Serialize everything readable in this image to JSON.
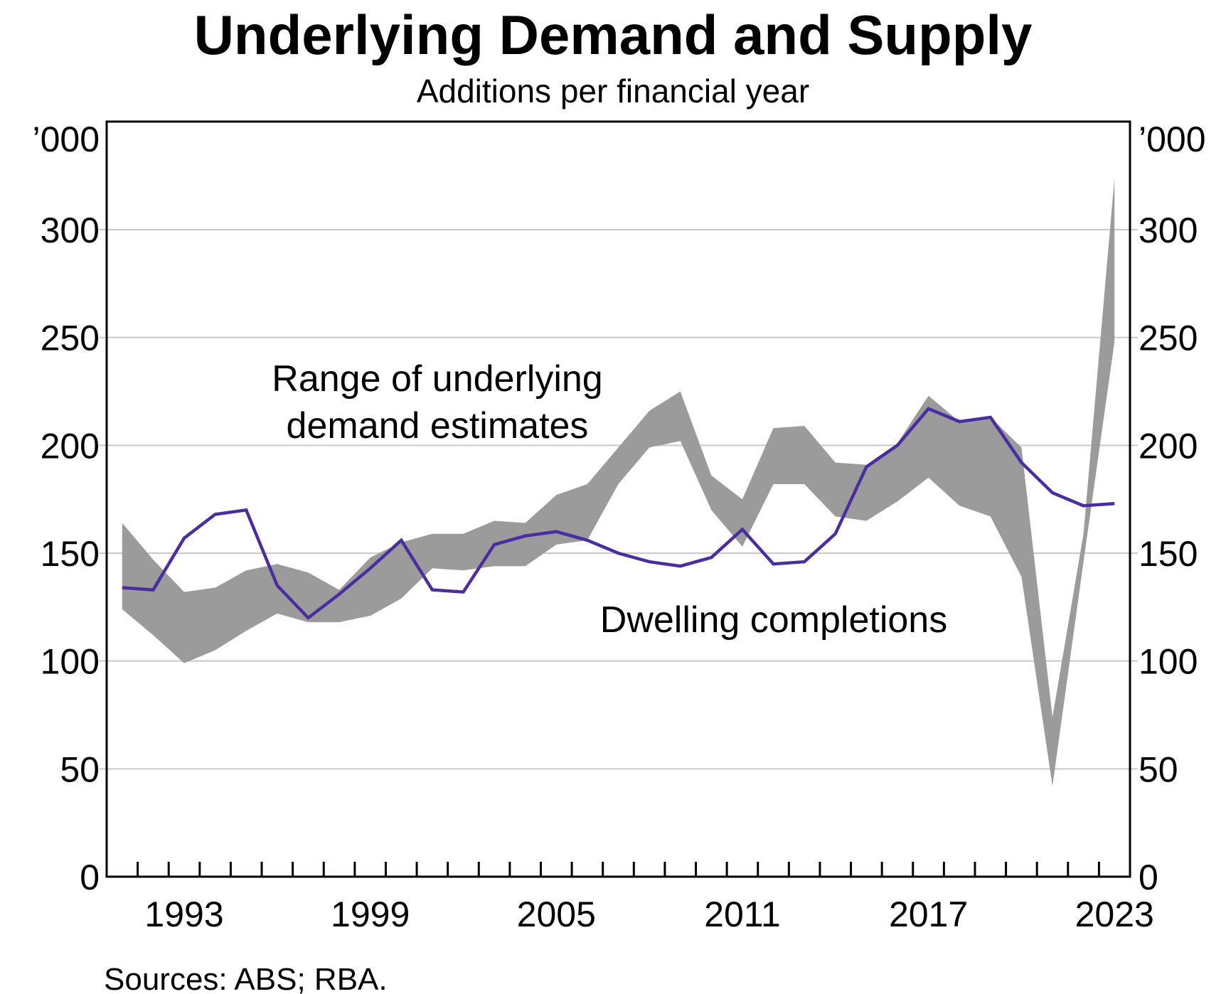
{
  "chart_data": {
    "type": "area",
    "subtype": "band-plus-line",
    "title": "Underlying Demand and Supply",
    "subtitle": "Additions per financial year",
    "unit_label": "’000",
    "source_note": "Sources: ABS; RBA.",
    "grid": "horizontal",
    "legend_position": "inline-annotations",
    "ylim": [
      0,
      350
    ],
    "yticks": [
      0,
      50,
      100,
      150,
      200,
      250,
      300
    ],
    "ytick_labels": [
      "0",
      "50",
      "100",
      "150",
      "200",
      "250",
      "300"
    ],
    "xtick_label_years": [
      1993,
      1999,
      2005,
      2011,
      2017,
      2023
    ],
    "x": [
      1991,
      1992,
      1993,
      1994,
      1995,
      1996,
      1997,
      1998,
      1999,
      2000,
      2001,
      2002,
      2003,
      2004,
      2005,
      2006,
      2007,
      2008,
      2009,
      2010,
      2011,
      2012,
      2013,
      2014,
      2015,
      2016,
      2017,
      2018,
      2019,
      2020,
      2021,
      2022,
      2023
    ],
    "series": [
      {
        "name": "Range of underlying demand estimates",
        "type": "band",
        "color": "#9b9b9b",
        "lower": [
          124,
          112,
          99,
          105,
          114,
          122,
          118,
          118,
          121,
          129,
          143,
          142,
          144,
          144,
          154,
          156,
          182,
          199,
          202,
          170,
          153,
          182,
          182,
          167,
          165,
          174,
          185,
          172,
          167,
          139,
          42,
          146,
          248
        ],
        "upper": [
          164,
          147,
          132,
          134,
          142,
          145,
          141,
          133,
          148,
          155,
          159,
          159,
          165,
          164,
          177,
          182,
          199,
          216,
          225,
          186,
          175,
          208,
          209,
          192,
          191,
          201,
          223,
          211,
          213,
          199,
          74,
          159,
          324
        ]
      },
      {
        "name": "Dwelling completions",
        "type": "line",
        "color": "#4a2d9f",
        "values": [
          134,
          133,
          157,
          168,
          170,
          135,
          120,
          131,
          143,
          156,
          133,
          132,
          154,
          158,
          160,
          156,
          150,
          146,
          144,
          148,
          161,
          145,
          146,
          159,
          190,
          200,
          217,
          211,
          213,
          192,
          178,
          172,
          173
        ]
      }
    ],
    "annotations": {
      "range_label_line1": "Range of underlying",
      "range_label_line2": "demand estimates",
      "range_label_color": "#8e8e8e",
      "completions_label": "Dwelling completions",
      "completions_label_color": "#4a2d9f"
    },
    "axis_color": "#000000",
    "gridline_color": "#c9c9c9"
  }
}
